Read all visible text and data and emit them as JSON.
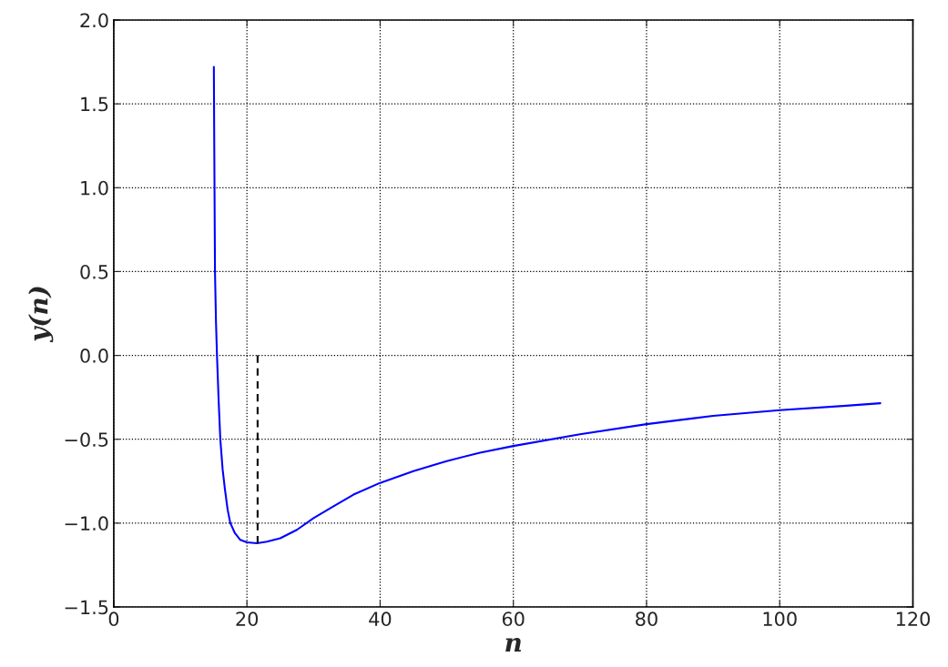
{
  "chart_data": {
    "type": "line",
    "xlabel": "n",
    "ylabel": "y(n)",
    "xlim": [
      0,
      120
    ],
    "ylim": [
      -1.5,
      2.0
    ],
    "xticks": [
      0,
      20,
      40,
      60,
      80,
      100,
      120
    ],
    "yticks": [
      {
        "value": -1.5,
        "label": "−1.5"
      },
      {
        "value": -1.0,
        "label": "−1.0"
      },
      {
        "value": -0.5,
        "label": "−0.5"
      },
      {
        "value": 0.0,
        "label": "0.0"
      },
      {
        "value": 0.5,
        "label": "0.5"
      },
      {
        "value": 1.0,
        "label": "1.0"
      },
      {
        "value": 1.5,
        "label": "1.5"
      },
      {
        "value": 2.0,
        "label": "2.0"
      }
    ],
    "grid": true,
    "line_style": "solid",
    "series": [
      {
        "color": "#0000ff",
        "x": [
          15.03,
          15.1,
          15.2,
          15.35,
          15.5,
          15.75,
          16.0,
          16.35,
          16.7,
          17.1,
          17.5,
          18.2,
          19.0,
          20.0,
          21.5,
          23.0,
          25.0,
          27.5,
          30.0,
          33.0,
          36.0,
          40.0,
          45.0,
          50.0,
          55.0,
          60.0,
          70.0,
          80.0,
          90.0,
          100.0,
          110.0,
          115.1
        ],
        "values": [
          1.72,
          1.2,
          0.5,
          0.2,
          0.0,
          -0.27,
          -0.5,
          -0.68,
          -0.8,
          -0.92,
          -1.0,
          -1.06,
          -1.1,
          -1.115,
          -1.12,
          -1.11,
          -1.09,
          -1.04,
          -0.97,
          -0.9,
          -0.83,
          -0.76,
          -0.69,
          -0.63,
          -0.58,
          -0.54,
          -0.47,
          -0.41,
          -0.36,
          -0.326,
          -0.3,
          -0.285
        ]
      },
      {
        "color": "#000000",
        "line_style": "dashed",
        "x": [
          21.6,
          21.6
        ],
        "values": [
          0.0,
          -1.12
        ]
      }
    ]
  }
}
